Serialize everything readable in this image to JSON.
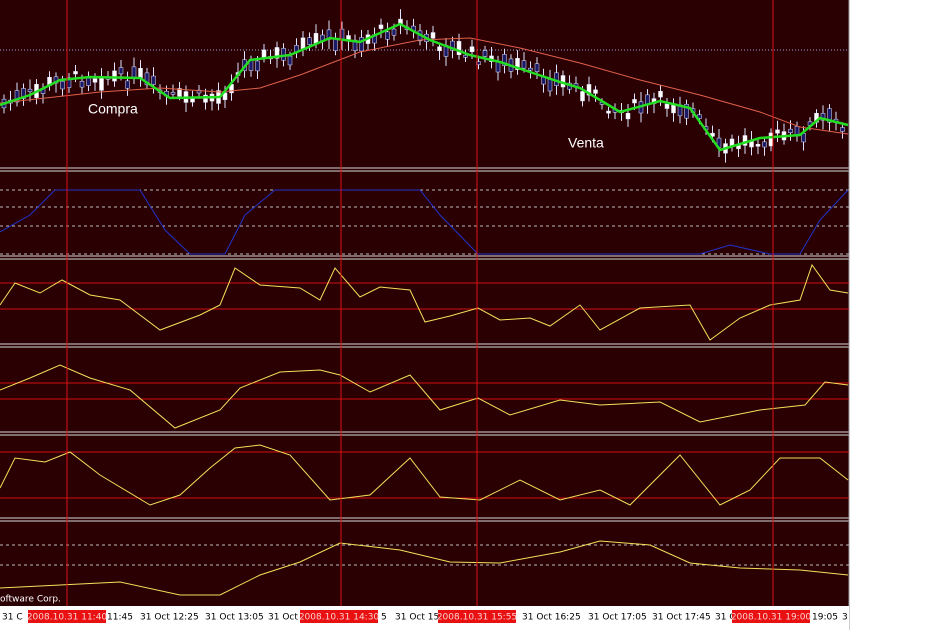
{
  "annotations": {
    "buy": "Compra",
    "sell": "Venta"
  },
  "footer": "oftware Corp.",
  "time_axis": {
    "labels": [
      "31 C",
      "11:45",
      "31 Oct 12:25",
      "31 Oct 13:05",
      "31 Oct 1",
      "5",
      "31 Oct 15",
      "31 Oct 16:25",
      "31 Oct 17:05",
      "31 Oct 17:45",
      "31 C",
      "19:05",
      "3"
    ],
    "cursor_labels": [
      "2008.10.31 11:40",
      "2008.10.31 14:30",
      "2008.10.31 15:55",
      "2008.10.31 19:00"
    ]
  }
}
